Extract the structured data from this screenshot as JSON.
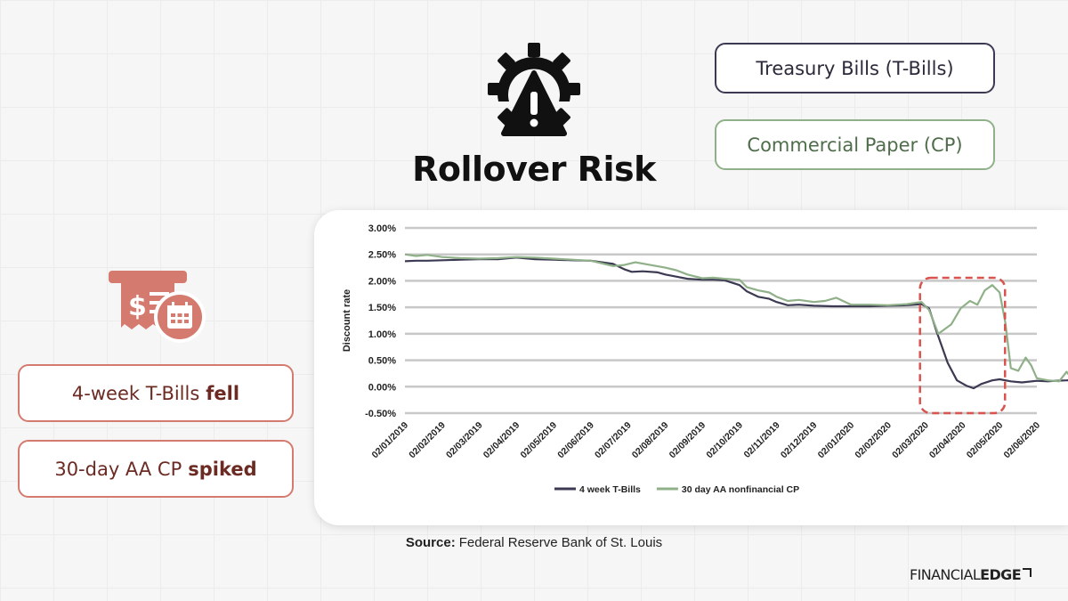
{
  "title": "Rollover Risk",
  "pills": {
    "tbill": "Treasury Bills (T-Bills)",
    "cp": "Commercial Paper (CP)"
  },
  "notes": {
    "fell_prefix": "4-week T-Bills",
    "fell_bold": "fell",
    "spike_prefix": "30-day AA CP",
    "spike_bold": "spiked"
  },
  "source": {
    "label": "Source:",
    "text": "Federal Reserve Bank of St. Louis"
  },
  "brand": {
    "part1": "FINANCIAL",
    "part2": "EDGE"
  },
  "colors": {
    "tbill": "#3b3a52",
    "cp": "#8fb089",
    "accent": "#d57a6e",
    "highlight": "#d9534f"
  },
  "chart_data": {
    "type": "line",
    "ylabel": "Discount rate",
    "ylim": [
      -0.5,
      3.0
    ],
    "yticks": [
      3.0,
      2.5,
      2.0,
      1.5,
      1.0,
      0.5,
      0.0,
      -0.5
    ],
    "ytick_labels": [
      "3.00%",
      "2.50%",
      "2.00%",
      "1.50%",
      "1.00%",
      "0.50%",
      "0.00%",
      "-0.50%"
    ],
    "x_labels": [
      "02/01/2019",
      "02/02/2019",
      "02/03/2019",
      "02/04/2019",
      "02/05/2019",
      "02/06/2019",
      "02/07/2019",
      "02/08/2019",
      "02/09/2019",
      "02/10/2019",
      "02/11/2019",
      "02/12/2019",
      "02/01/2020",
      "02/02/2020",
      "02/03/2020",
      "02/04/2020",
      "02/05/2020",
      "02/06/2020"
    ],
    "grid": true,
    "legend_position": "bottom",
    "highlight_range": [
      "02/03/2020",
      "02/05/2020"
    ],
    "series": [
      {
        "name": "4 week T-Bills",
        "color": "#3b3a52",
        "points": [
          [
            0,
            2.37
          ],
          [
            0.3,
            2.38
          ],
          [
            0.6,
            2.38
          ],
          [
            1,
            2.39
          ],
          [
            1.5,
            2.4
          ],
          [
            2,
            2.41
          ],
          [
            2.5,
            2.41
          ],
          [
            3,
            2.44
          ],
          [
            3.5,
            2.41
          ],
          [
            4,
            2.4
          ],
          [
            4.5,
            2.39
          ],
          [
            5,
            2.38
          ],
          [
            5.3,
            2.35
          ],
          [
            5.6,
            2.32
          ],
          [
            5.9,
            2.22
          ],
          [
            6.1,
            2.17
          ],
          [
            6.4,
            2.18
          ],
          [
            6.8,
            2.16
          ],
          [
            7,
            2.12
          ],
          [
            7.3,
            2.08
          ],
          [
            7.6,
            2.04
          ],
          [
            8,
            2.02
          ],
          [
            8.3,
            2.02
          ],
          [
            8.6,
            2.01
          ],
          [
            9,
            1.92
          ],
          [
            9.2,
            1.8
          ],
          [
            9.5,
            1.7
          ],
          [
            9.8,
            1.66
          ],
          [
            10,
            1.6
          ],
          [
            10.3,
            1.54
          ],
          [
            10.6,
            1.55
          ],
          [
            11,
            1.53
          ],
          [
            11.5,
            1.52
          ],
          [
            12,
            1.52
          ],
          [
            12.5,
            1.52
          ],
          [
            13,
            1.53
          ],
          [
            13.5,
            1.54
          ],
          [
            13.9,
            1.56
          ],
          [
            14.1,
            1.48
          ],
          [
            14.3,
            1.05
          ],
          [
            14.6,
            0.45
          ],
          [
            14.85,
            0.12
          ],
          [
            15.1,
            0.02
          ],
          [
            15.3,
            -0.03
          ],
          [
            15.5,
            0.05
          ],
          [
            15.8,
            0.12
          ],
          [
            16,
            0.14
          ],
          [
            16.3,
            0.1
          ],
          [
            16.6,
            0.08
          ],
          [
            17,
            0.11
          ],
          [
            17.3,
            0.1
          ],
          [
            17.5,
            0.11
          ],
          [
            17.8,
            0.12
          ],
          [
            18,
            0.13
          ]
        ]
      },
      {
        "name": "30 day AA nonfinancial CP",
        "color": "#8fb089",
        "points": [
          [
            0,
            2.5
          ],
          [
            0.3,
            2.47
          ],
          [
            0.6,
            2.49
          ],
          [
            1,
            2.45
          ],
          [
            1.5,
            2.43
          ],
          [
            2,
            2.42
          ],
          [
            2.5,
            2.43
          ],
          [
            3,
            2.45
          ],
          [
            3.5,
            2.44
          ],
          [
            4,
            2.42
          ],
          [
            4.5,
            2.4
          ],
          [
            5,
            2.38
          ],
          [
            5.3,
            2.33
          ],
          [
            5.6,
            2.28
          ],
          [
            5.9,
            2.3
          ],
          [
            6.2,
            2.35
          ],
          [
            6.6,
            2.3
          ],
          [
            7,
            2.25
          ],
          [
            7.3,
            2.2
          ],
          [
            7.6,
            2.12
          ],
          [
            8,
            2.05
          ],
          [
            8.3,
            2.06
          ],
          [
            8.6,
            2.04
          ],
          [
            9,
            2.02
          ],
          [
            9.2,
            1.88
          ],
          [
            9.5,
            1.82
          ],
          [
            9.8,
            1.78
          ],
          [
            10,
            1.7
          ],
          [
            10.3,
            1.62
          ],
          [
            10.6,
            1.64
          ],
          [
            11,
            1.6
          ],
          [
            11.3,
            1.62
          ],
          [
            11.6,
            1.68
          ],
          [
            12,
            1.55
          ],
          [
            12.5,
            1.55
          ],
          [
            13,
            1.54
          ],
          [
            13.5,
            1.56
          ],
          [
            13.9,
            1.6
          ],
          [
            14.1,
            1.45
          ],
          [
            14.35,
            1.0
          ],
          [
            14.7,
            1.18
          ],
          [
            14.95,
            1.48
          ],
          [
            15.2,
            1.62
          ],
          [
            15.4,
            1.55
          ],
          [
            15.6,
            1.82
          ],
          [
            15.8,
            1.92
          ],
          [
            16,
            1.78
          ],
          [
            16.15,
            1.22
          ],
          [
            16.3,
            0.35
          ],
          [
            16.5,
            0.3
          ],
          [
            16.7,
            0.55
          ],
          [
            16.85,
            0.4
          ],
          [
            17,
            0.16
          ],
          [
            17.3,
            0.12
          ],
          [
            17.6,
            0.1
          ],
          [
            17.8,
            0.28
          ],
          [
            18,
            0.1
          ]
        ]
      }
    ]
  }
}
